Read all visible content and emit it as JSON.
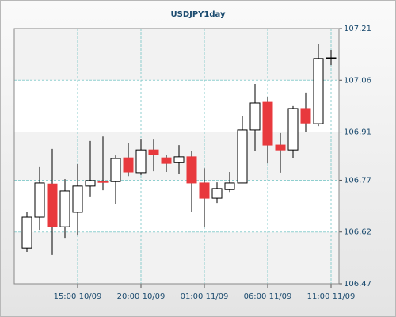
{
  "chart_data": {
    "type": "candlestick",
    "title": "USDJPY1day",
    "categories": [
      null,
      null,
      null,
      null,
      "15:00 10/09",
      null,
      null,
      null,
      null,
      "20:00 10/09",
      null,
      null,
      null,
      null,
      "01:00 11/09",
      null,
      null,
      null,
      null,
      "06:00 11/09",
      null,
      null,
      null,
      null,
      "11:00 11/09"
    ],
    "open": [
      106.573,
      106.663,
      106.759,
      106.635,
      106.677,
      106.753,
      106.766,
      106.766,
      106.835,
      106.792,
      106.858,
      106.835,
      106.821,
      106.838,
      106.762,
      106.718,
      106.743,
      106.762,
      106.916,
      106.996,
      106.872,
      106.858,
      106.978,
      106.934,
      107.125
    ],
    "high": [
      106.677,
      106.808,
      106.861,
      106.773,
      106.817,
      106.884,
      106.897,
      106.842,
      106.877,
      106.888,
      106.888,
      106.844,
      106.872,
      106.856,
      106.805,
      106.764,
      106.794,
      106.957,
      107.049,
      107.01,
      106.907,
      106.985,
      107.024,
      107.166,
      107.148
    ],
    "low": [
      106.562,
      106.626,
      106.553,
      106.603,
      106.61,
      106.723,
      106.741,
      106.702,
      106.782,
      106.785,
      106.796,
      106.794,
      106.789,
      106.679,
      106.635,
      106.704,
      106.736,
      106.762,
      106.856,
      106.819,
      106.792,
      106.835,
      106.909,
      106.927,
      107.104
    ],
    "close": [
      106.663,
      106.762,
      106.635,
      106.739,
      106.753,
      106.769,
      106.764,
      106.833,
      106.794,
      106.858,
      106.844,
      106.819,
      106.838,
      106.762,
      106.718,
      106.746,
      106.762,
      106.916,
      106.994,
      106.872,
      106.858,
      106.978,
      106.936,
      107.123,
      107.125
    ],
    "up_color": "#ffffff",
    "down_color": "#e8393d",
    "ylim": [
      106.47,
      107.21
    ],
    "yticks": [
      106.47,
      106.62,
      106.77,
      106.91,
      107.06,
      107.21
    ],
    "grid": true
  }
}
